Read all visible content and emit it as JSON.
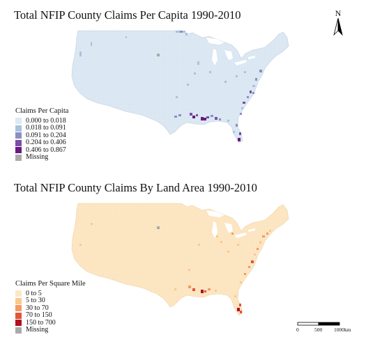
{
  "maps": [
    {
      "title": "Total NFIP County Claims Per Capita 1990-2010",
      "base_color": "#dde9f3",
      "legend": {
        "title": "Claims Per Capita",
        "items": [
          {
            "label": "0.000 to 0.018",
            "color": "#dde9f3"
          },
          {
            "label": "0.018 to 0.091",
            "color": "#a9c3df"
          },
          {
            "label": "0.091 to 0.204",
            "color": "#8c8fc3"
          },
          {
            "label": "0.204 to 0.406",
            "color": "#7a4ea8"
          },
          {
            "label": "0.406 to 0.867",
            "color": "#6a1a7f"
          },
          {
            "label": "Missing",
            "color": "#aaaaaa"
          }
        ]
      }
    },
    {
      "title": "Total NFIP County Claims By Land Area 1990-2010",
      "base_color": "#fde7c4",
      "legend": {
        "title": "Claims Per Square Mile",
        "items": [
          {
            "label": "0 to 5",
            "color": "#fde7c4"
          },
          {
            "label": "5 to 30",
            "color": "#fbc88e"
          },
          {
            "label": "30 to 70",
            "color": "#f49a62"
          },
          {
            "label": "70 to 150",
            "color": "#e0553a"
          },
          {
            "label": "150 to 700",
            "color": "#b01020"
          },
          {
            "label": "Missing",
            "color": "#aaaaaa"
          }
        ]
      }
    }
  ],
  "north_arrow": {
    "label": "N"
  },
  "scale_bar": {
    "labels": [
      "0",
      "500",
      "1000km"
    ]
  }
}
